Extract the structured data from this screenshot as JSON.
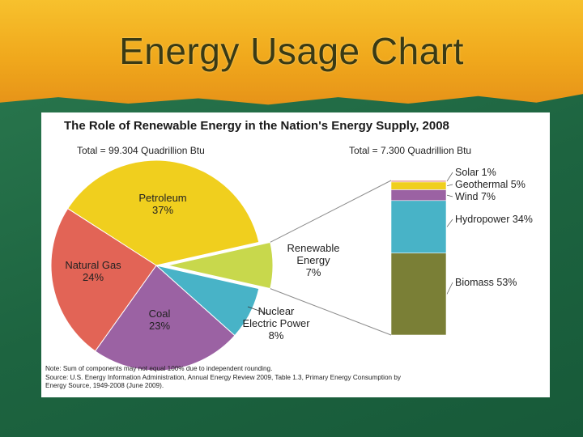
{
  "slide": {
    "title": "Energy Usage Chart"
  },
  "chart_data": {
    "type": "pie",
    "title": "The Role of Renewable Energy in the Nation's Energy Supply, 2008",
    "total_left": "Total = 99.304 Quadrillion Btu",
    "total_right": "Total = 7.300 Quadrillion Btu",
    "slices": [
      {
        "name": "Petroleum",
        "label": "Petroleum",
        "value": 37,
        "value_label": "37%",
        "color": "#f0cf1e"
      },
      {
        "name": "Renewable Energy",
        "label": "Renewable",
        "label2": "Energy",
        "value": 7,
        "value_label": "7%",
        "color": "#c8d84c"
      },
      {
        "name": "Nuclear Electric Power",
        "label": "Nuclear",
        "label2": "Electric Power",
        "value": 8,
        "value_label": "8%",
        "color": "#48b3c7"
      },
      {
        "name": "Coal",
        "label": "Coal",
        "value": 23,
        "value_label": "23%",
        "color": "#9b62a3"
      },
      {
        "name": "Natural Gas",
        "label": "Natural Gas",
        "value": 24,
        "value_label": "24%",
        "color": "#e26456"
      }
    ],
    "renewable_breakdown": [
      {
        "name": "Solar",
        "value": 1,
        "label": "Solar 1%",
        "color": "#e08a84"
      },
      {
        "name": "Geothermal",
        "value": 5,
        "label": "Geothermal 5%",
        "color": "#f0cf1e"
      },
      {
        "name": "Wind",
        "value": 7,
        "label": "Wind 7%",
        "color": "#9b62a3"
      },
      {
        "name": "Hydropower",
        "value": 34,
        "label": "Hydropower 34%",
        "color": "#48b3c7"
      },
      {
        "name": "Biomass",
        "value": 53,
        "label": "Biomass 53%",
        "color": "#7a7f36"
      }
    ],
    "note": "Note: Sum of components may not equal 100% due to independent rounding.",
    "source_line1": "Source: U.S. Energy Information Administration, Annual Energy Review 2009, Table 1.3, Primary Energy Consumption by",
    "source_line2": "Energy Source, 1949-2008 (June 2009)."
  }
}
